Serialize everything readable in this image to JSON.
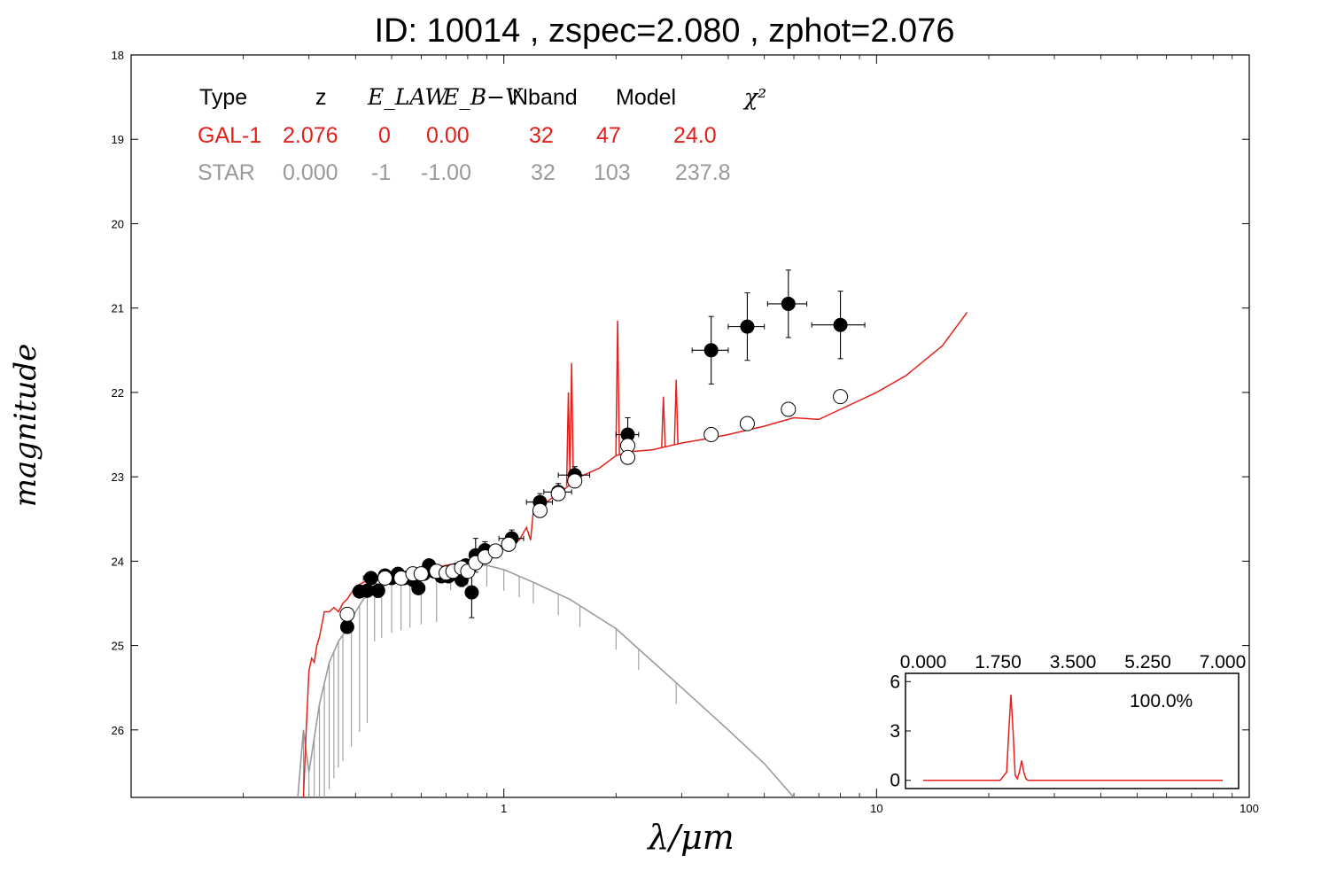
{
  "chart_data": {
    "type": "scatter",
    "title": "ID:  10014 , zspec=2.080 , zphot=2.076",
    "xlabel": "λ/μm",
    "ylabel": "magnitude",
    "xscale": "log",
    "xlim": [
      0.1,
      100
    ],
    "ylim": [
      26.8,
      18
    ],
    "yaxis_inverted": true,
    "x_ticks": [
      1,
      10,
      100
    ],
    "x_tick_labels": [
      "1",
      "10",
      "100"
    ],
    "y_ticks": [
      18,
      19,
      20,
      21,
      22,
      23,
      24,
      25,
      26
    ],
    "y_tick_labels": [
      "18",
      "19",
      "20",
      "21",
      "22",
      "23",
      "24",
      "25",
      "26"
    ],
    "legend_table": {
      "headers": [
        "Type",
        "z",
        "E_LAW",
        "E_B−V",
        "Nband",
        "Model",
        "χ²"
      ],
      "rows": [
        {
          "name": "GAL-1",
          "z": "2.076",
          "elaw": "0",
          "ebv": "0.00",
          "nband": "32",
          "model": "47",
          "chi2": "24.0",
          "color": "#e3201b"
        },
        {
          "name": "STAR",
          "z": "0.000",
          "elaw": "-1",
          "ebv": "-1.00",
          "nband": "32",
          "model": "103",
          "chi2": "237.8",
          "color": "#9a9a9a"
        }
      ]
    },
    "observed": [
      {
        "x": 0.38,
        "y": 24.78,
        "xerr": 0.01,
        "yerr": 0.05
      },
      {
        "x": 0.41,
        "y": 24.36,
        "xerr": 0.01,
        "yerr": 0.05
      },
      {
        "x": 0.43,
        "y": 24.35,
        "xerr": 0.02,
        "yerr": 0.05
      },
      {
        "x": 0.44,
        "y": 24.2,
        "xerr": 0.02,
        "yerr": 0.05
      },
      {
        "x": 0.46,
        "y": 24.35,
        "xerr": 0.01,
        "yerr": 0.08
      },
      {
        "x": 0.48,
        "y": 24.17,
        "xerr": 0.01,
        "yerr": 0.05
      },
      {
        "x": 0.5,
        "y": 24.2,
        "xerr": 0.02,
        "yerr": 0.05
      },
      {
        "x": 0.52,
        "y": 24.15,
        "xerr": 0.01,
        "yerr": 0.05
      },
      {
        "x": 0.54,
        "y": 24.2,
        "xerr": 0.01,
        "yerr": 0.05
      },
      {
        "x": 0.57,
        "y": 24.22,
        "xerr": 0.01,
        "yerr": 0.05
      },
      {
        "x": 0.59,
        "y": 24.32,
        "xerr": 0.01,
        "yerr": 0.06
      },
      {
        "x": 0.61,
        "y": 24.15,
        "xerr": 0.02,
        "yerr": 0.05
      },
      {
        "x": 0.63,
        "y": 24.05,
        "xerr": 0.01,
        "yerr": 0.05
      },
      {
        "x": 0.65,
        "y": 24.12,
        "xerr": 0.02,
        "yerr": 0.05
      },
      {
        "x": 0.68,
        "y": 24.18,
        "xerr": 0.02,
        "yerr": 0.05
      },
      {
        "x": 0.71,
        "y": 24.18,
        "xerr": 0.01,
        "yerr": 0.05
      },
      {
        "x": 0.73,
        "y": 24.15,
        "xerr": 0.01,
        "yerr": 0.05
      },
      {
        "x": 0.75,
        "y": 24.1,
        "xerr": 0.02,
        "yerr": 0.05
      },
      {
        "x": 0.77,
        "y": 24.22,
        "xerr": 0.02,
        "yerr": 0.08
      },
      {
        "x": 0.79,
        "y": 24.05,
        "xerr": 0.02,
        "yerr": 0.06
      },
      {
        "x": 0.82,
        "y": 24.37,
        "xerr": 0.02,
        "yerr": 0.3
      },
      {
        "x": 0.84,
        "y": 23.93,
        "xerr": 0.03,
        "yerr": 0.2
      },
      {
        "x": 0.89,
        "y": 23.87,
        "xerr": 0.03,
        "yerr": 0.1
      },
      {
        "x": 1.05,
        "y": 23.73,
        "xerr": 0.08,
        "yerr": 0.1
      },
      {
        "x": 1.25,
        "y": 23.3,
        "xerr": 0.1,
        "yerr": 0.1
      },
      {
        "x": 1.4,
        "y": 23.18,
        "xerr": 0.12,
        "yerr": 0.1
      },
      {
        "x": 1.55,
        "y": 22.98,
        "xerr": 0.15,
        "yerr": 0.1
      },
      {
        "x": 2.15,
        "y": 22.5,
        "xerr": 0.15,
        "yerr": 0.2
      },
      {
        "x": 3.6,
        "y": 21.5,
        "xerr": 0.4,
        "yerr": 0.4
      },
      {
        "x": 4.5,
        "y": 21.22,
        "xerr": 0.5,
        "yerr": 0.4
      },
      {
        "x": 5.8,
        "y": 20.95,
        "xerr": 0.7,
        "yerr": 0.4
      },
      {
        "x": 8.0,
        "y": 21.2,
        "xerr": 1.3,
        "yerr": 0.4
      }
    ],
    "model_points": [
      {
        "x": 0.38,
        "y": 24.63
      },
      {
        "x": 0.48,
        "y": 24.2
      },
      {
        "x": 0.53,
        "y": 24.2
      },
      {
        "x": 0.57,
        "y": 24.15
      },
      {
        "x": 0.6,
        "y": 24.15
      },
      {
        "x": 0.66,
        "y": 24.12
      },
      {
        "x": 0.7,
        "y": 24.14
      },
      {
        "x": 0.73,
        "y": 24.12
      },
      {
        "x": 0.77,
        "y": 24.08
      },
      {
        "x": 0.8,
        "y": 24.12
      },
      {
        "x": 0.84,
        "y": 24.02
      },
      {
        "x": 0.89,
        "y": 23.95
      },
      {
        "x": 0.95,
        "y": 23.88
      },
      {
        "x": 1.03,
        "y": 23.8
      },
      {
        "x": 1.25,
        "y": 23.4
      },
      {
        "x": 1.4,
        "y": 23.2
      },
      {
        "x": 1.55,
        "y": 23.05
      },
      {
        "x": 2.15,
        "y": 22.63
      },
      {
        "x": 2.15,
        "y": 22.77
      },
      {
        "x": 3.6,
        "y": 22.5
      },
      {
        "x": 4.5,
        "y": 22.37
      },
      {
        "x": 5.8,
        "y": 22.2
      },
      {
        "x": 8.0,
        "y": 22.05
      }
    ],
    "galaxy_sed": {
      "name": "GAL-1",
      "color": "#e3201b",
      "x": [
        0.29,
        0.295,
        0.3,
        0.305,
        0.31,
        0.315,
        0.32,
        0.33,
        0.34,
        0.35,
        0.36,
        0.37,
        0.38,
        0.4,
        0.42,
        0.45,
        0.5,
        0.55,
        0.6,
        0.7,
        0.8,
        0.9,
        1.0,
        1.1,
        1.15,
        1.18,
        1.2,
        1.3,
        1.4,
        1.5,
        1.6,
        1.8,
        2.0,
        2.2,
        2.5,
        3.0,
        3.5,
        4.0,
        5.0,
        6.0,
        7.0,
        8.0,
        10.0,
        12.0,
        15.0,
        17.5
      ],
      "y": [
        26.8,
        26.0,
        25.3,
        25.15,
        25.2,
        25.0,
        24.9,
        24.6,
        24.6,
        24.55,
        24.6,
        24.5,
        24.45,
        24.3,
        24.25,
        24.2,
        24.15,
        24.12,
        24.1,
        24.05,
        24.0,
        23.9,
        23.8,
        23.75,
        23.6,
        23.75,
        23.4,
        23.3,
        23.2,
        23.1,
        23.0,
        22.9,
        22.75,
        22.7,
        22.68,
        22.6,
        22.55,
        22.5,
        22.4,
        22.3,
        22.32,
        22.2,
        22.0,
        21.8,
        21.45,
        21.05
      ],
      "emission_lines": [
        {
          "x": 1.49,
          "y": 22.0
        },
        {
          "x": 1.52,
          "y": 21.65
        },
        {
          "x": 2.02,
          "y": 21.15
        },
        {
          "x": 2.68,
          "y": 22.05
        },
        {
          "x": 2.9,
          "y": 21.85
        }
      ]
    },
    "star_sed": {
      "name": "STAR",
      "color": "#9a9a9a",
      "x": [
        0.28,
        0.29,
        0.3,
        0.32,
        0.34,
        0.36,
        0.38,
        0.4,
        0.42,
        0.45,
        0.5,
        0.55,
        0.6,
        0.7,
        0.8,
        0.9,
        1.0,
        1.2,
        1.5,
        2.0,
        3.0,
        4.0,
        5.0,
        6.0
      ],
      "y": [
        26.8,
        26.0,
        26.5,
        25.7,
        25.2,
        24.95,
        24.8,
        24.6,
        24.45,
        24.35,
        24.25,
        24.2,
        24.15,
        24.1,
        24.05,
        24.05,
        24.1,
        24.25,
        24.45,
        24.8,
        25.5,
        26.0,
        26.4,
        26.8
      ]
    },
    "inset": {
      "x_tick_labels": [
        "0.000",
        "1.750",
        "3.500",
        "5.250",
        "7.000"
      ],
      "xlim": [
        0,
        7
      ],
      "y_tick_labels": [
        "0",
        "3",
        "6"
      ],
      "ylim": [
        -0.5,
        6.5
      ],
      "percent_label": "100.0%",
      "pdf_x": [
        0,
        1.8,
        1.95,
        2.0,
        2.05,
        2.1,
        2.15,
        2.2,
        2.25,
        2.3,
        2.35,
        2.4,
        2.45,
        2.5,
        7.0
      ],
      "pdf_y": [
        0,
        0,
        0.5,
        3.0,
        5.2,
        3.0,
        0.3,
        0.1,
        0.5,
        1.2,
        0.5,
        0.1,
        0,
        0,
        0
      ],
      "color": "#e3201b"
    }
  }
}
